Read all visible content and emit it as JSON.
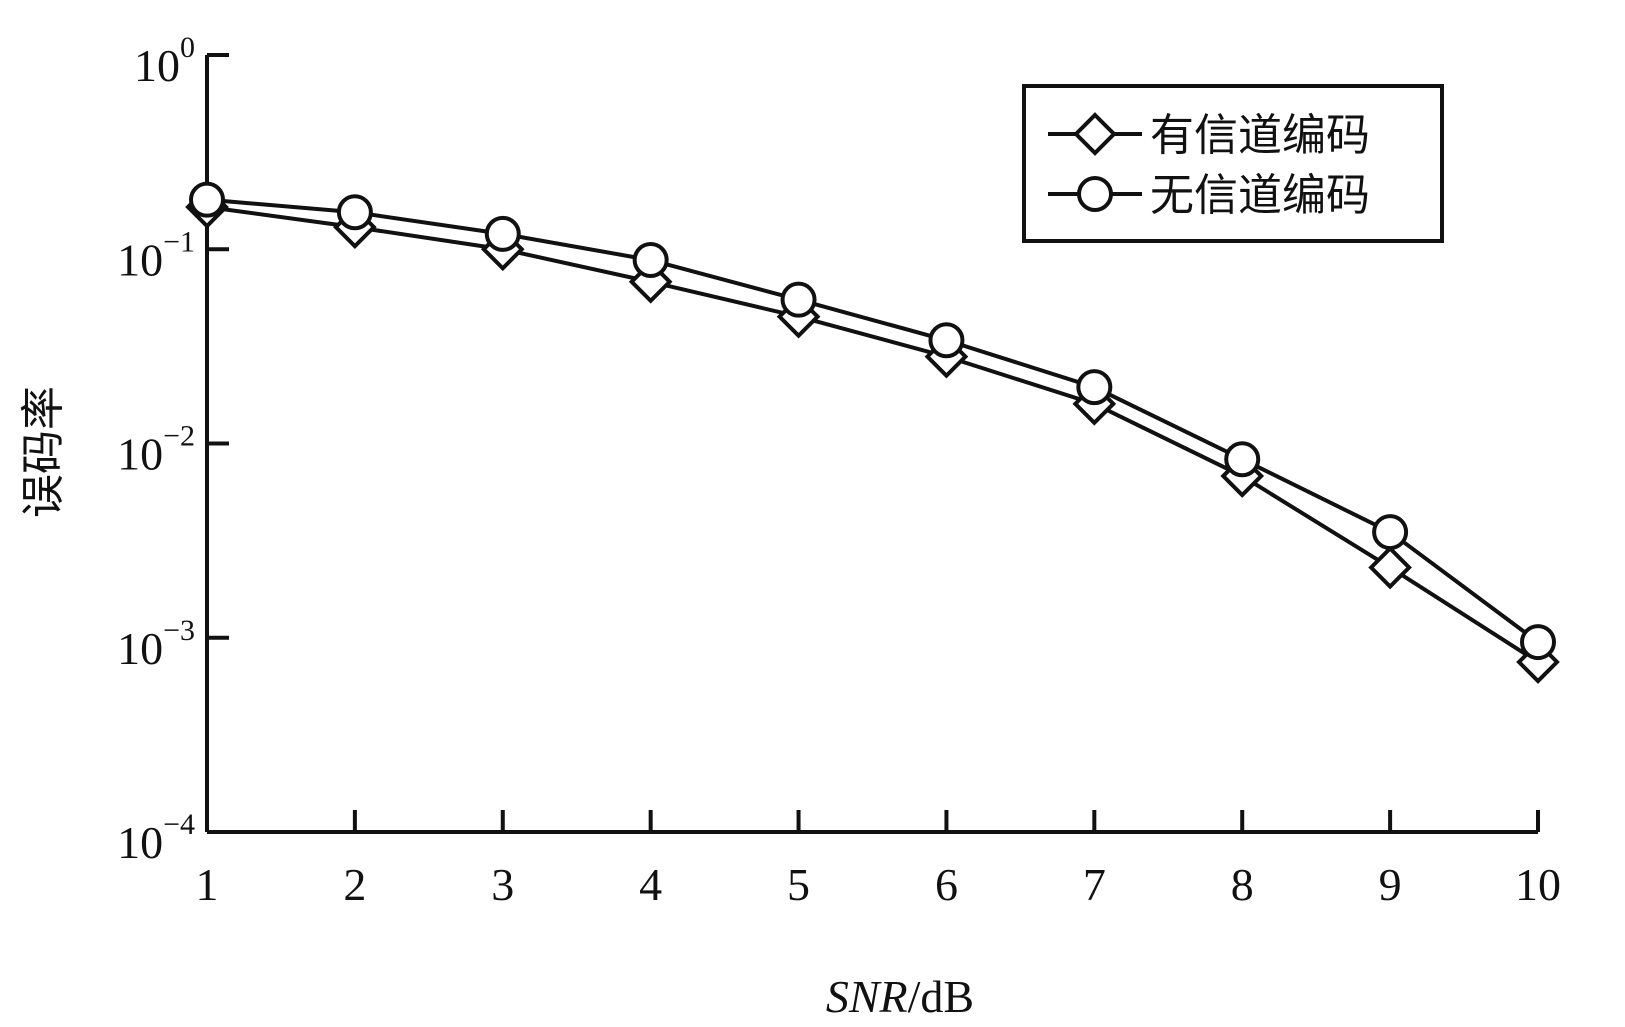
{
  "chart_data": {
    "type": "line",
    "xlabel_italic": "SNR",
    "xlabel_unit": "/dB",
    "ylabel": "误码率",
    "yscale": "log",
    "ylim": [
      0.0001,
      1
    ],
    "xlim": [
      1,
      10
    ],
    "x": [
      1,
      2,
      3,
      4,
      5,
      6,
      7,
      8,
      9,
      10
    ],
    "xticks": [
      "1",
      "2",
      "3",
      "4",
      "5",
      "6",
      "7",
      "8",
      "9",
      "10"
    ],
    "yticks": [
      {
        "base": "10",
        "exp": "0",
        "value": 1
      },
      {
        "base": "10",
        "exp": "−1",
        "value": 0.1
      },
      {
        "base": "10",
        "exp": "−2",
        "value": 0.01
      },
      {
        "base": "10",
        "exp": "−3",
        "value": 0.001
      },
      {
        "base": "10",
        "exp": "−4",
        "value": 0.0001
      }
    ],
    "grid": false,
    "legend_position": "top-right",
    "series": [
      {
        "name": "有信道编码",
        "marker": "diamond",
        "values": [
          0.165,
          0.13,
          0.1,
          0.068,
          0.045,
          0.028,
          0.016,
          0.0068,
          0.0023,
          0.00075
        ]
      },
      {
        "name": "无信道编码",
        "marker": "circle",
        "values": [
          0.18,
          0.155,
          0.12,
          0.088,
          0.055,
          0.034,
          0.0195,
          0.0083,
          0.0035,
          0.00095
        ]
      }
    ]
  }
}
